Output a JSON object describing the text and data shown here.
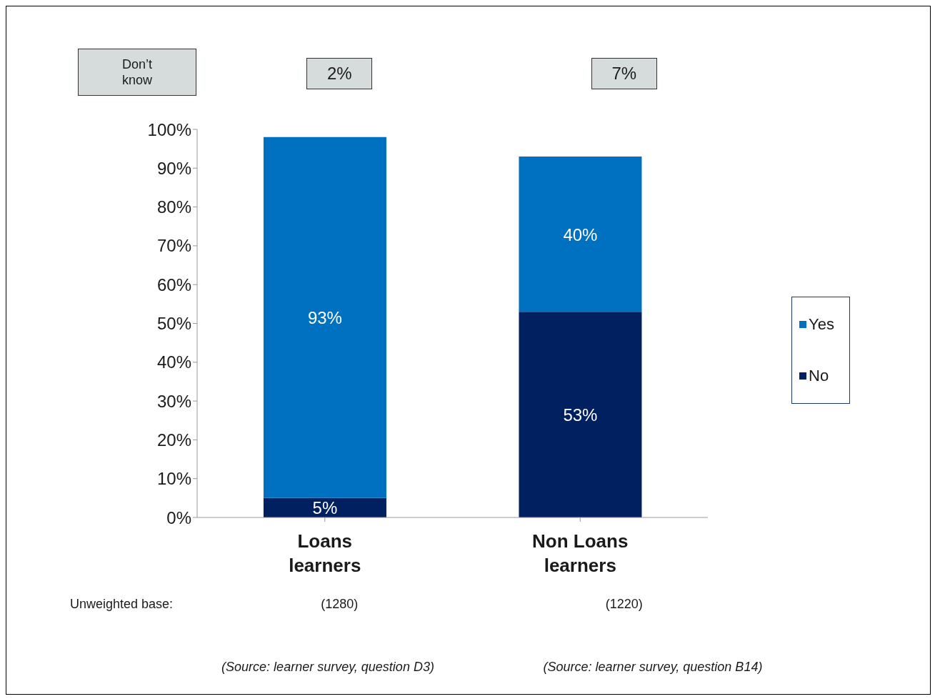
{
  "chart_data": {
    "type": "bar",
    "stacked": true,
    "categories": [
      "Loans learners",
      "Non Loans learners"
    ],
    "series": [
      {
        "name": "No",
        "color": "#002060",
        "values": [
          5,
          53
        ],
        "value_labels": [
          "5%",
          "53%"
        ]
      },
      {
        "name": "Yes",
        "color": "#0070c0",
        "values": [
          93,
          40
        ],
        "value_labels": [
          "93%",
          "40%"
        ]
      }
    ],
    "ylim": [
      0,
      100
    ],
    "yticks": [
      {
        "value": 0,
        "label": "0%"
      },
      {
        "value": 10,
        "label": "10%"
      },
      {
        "value": 20,
        "label": "20%"
      },
      {
        "value": 30,
        "label": "30%"
      },
      {
        "value": 40,
        "label": "40%"
      },
      {
        "value": 50,
        "label": "50%"
      },
      {
        "value": 60,
        "label": "60%"
      },
      {
        "value": 70,
        "label": "70%"
      },
      {
        "value": 80,
        "label": "80%"
      },
      {
        "value": 90,
        "label": "90%"
      },
      {
        "value": 100,
        "label": "100%"
      }
    ],
    "grid": false,
    "legend": "right",
    "annotations": [
      "Don’t know",
      "2%",
      "7%",
      "Unweighted base:",
      "(1280)",
      "(1220)",
      "(Source: learner survey, question D3)",
      "(Source: learner survey, question B14)"
    ]
  }
}
